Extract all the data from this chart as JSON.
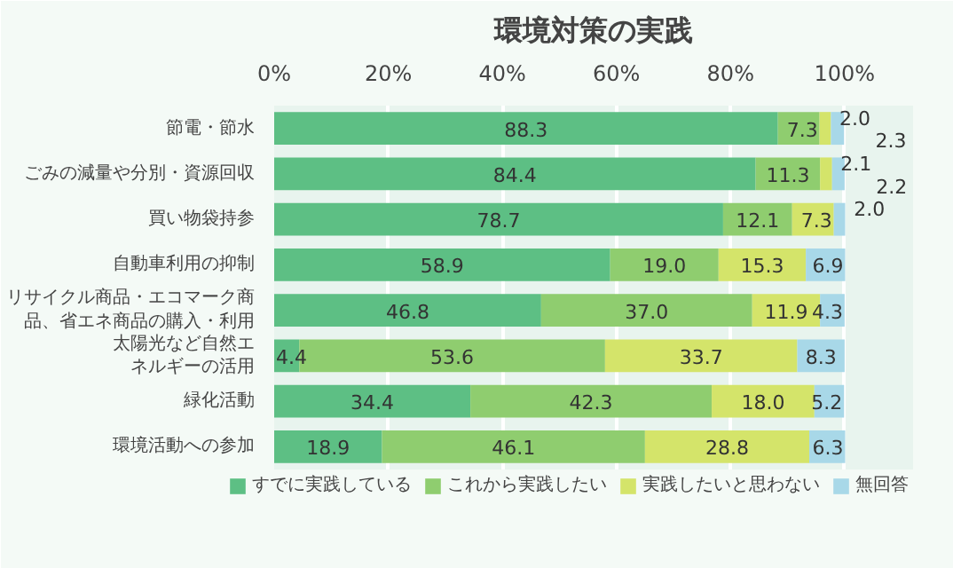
{
  "chart_data": {
    "type": "bar",
    "orientation": "horizontal",
    "stacked": true,
    "title": "環境対策の実践",
    "categories": [
      "節電・節水",
      "ごみの減量や分別・資源回収",
      "買い物袋持参",
      "自動車利用の抑制",
      "リサイクル商品・エコマーク商品、省エネ商品の購入・利用",
      "太陽光など自然エネルギーの活用",
      "緑化活動",
      "環境活動への参加"
    ],
    "series": [
      {
        "name": "すでに実践している",
        "color": "#5dbf84",
        "values": [
          88.3,
          84.4,
          78.7,
          58.9,
          46.8,
          4.4,
          34.4,
          18.9
        ],
        "value_labels": [
          "88.3",
          "84.4",
          "78.7",
          "58.9",
          "46.8",
          "4.4",
          "34.4",
          "18.9"
        ]
      },
      {
        "name": "これから実践したい",
        "color": "#8fcd6f",
        "values": [
          7.3,
          11.3,
          12.1,
          19.0,
          37.0,
          53.6,
          42.3,
          46.1
        ],
        "value_labels": [
          "7.3",
          "11.3",
          "12.1",
          "19.0",
          "37.0",
          "53.6",
          "42.3",
          "46.1"
        ]
      },
      {
        "name": "実践したいと思わない",
        "color": "#d4e46a",
        "values": [
          2.0,
          2.1,
          7.3,
          15.3,
          11.9,
          33.7,
          18.0,
          28.8
        ],
        "value_labels": [
          "2.0",
          "2.1",
          "7.3",
          "15.3",
          "11.9",
          "33.7",
          "18.0",
          "28.8"
        ]
      },
      {
        "name": "無回答",
        "color": "#a8d8e8",
        "values": [
          2.3,
          2.2,
          2.0,
          6.9,
          4.3,
          8.3,
          5.2,
          6.3
        ],
        "value_labels": [
          "2.3",
          "2.2",
          "2.0",
          "6.9",
          "4.3",
          "8.3",
          "5.2",
          "6.3"
        ]
      }
    ],
    "xlim": [
      0,
      112
    ],
    "xticks": [
      {
        "value": 0,
        "label": "0%"
      },
      {
        "value": 20,
        "label": "20%"
      },
      {
        "value": 40,
        "label": "40%"
      },
      {
        "value": 60,
        "label": "60%"
      },
      {
        "value": 80,
        "label": "80%"
      },
      {
        "value": 100,
        "label": "100%"
      }
    ],
    "grid": "x",
    "legend": "bottom"
  }
}
